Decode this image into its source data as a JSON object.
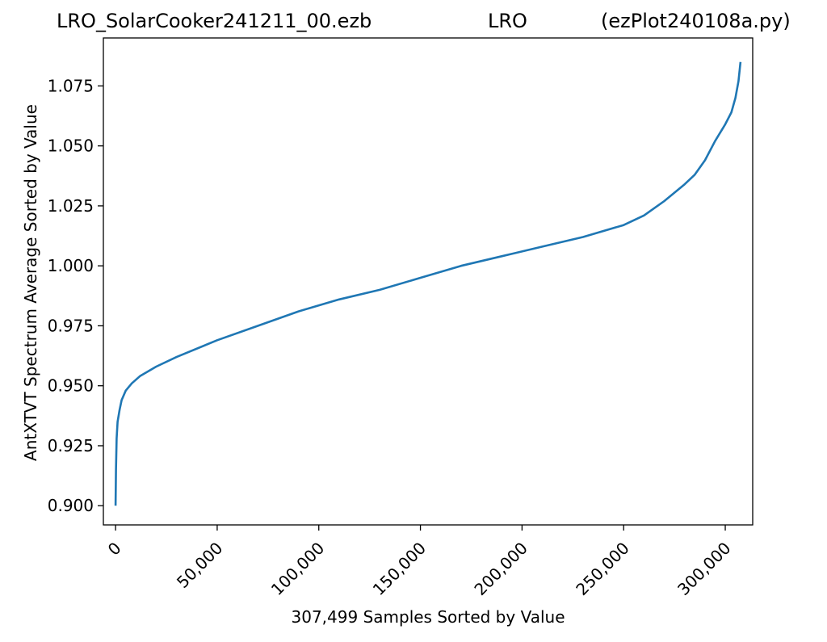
{
  "chart_data": {
    "type": "line",
    "title_left": "LRO_SolarCooker241211_00.ezb",
    "title_center": "LRO",
    "title_right": "(ezPlot240108a.py)",
    "xlabel": "307,499 Samples Sorted by Value",
    "ylabel": "AntXTVT Spectrum Average Sorted by Value",
    "xlim": [
      -6000,
      313500
    ],
    "ylim": [
      0.892,
      1.095
    ],
    "xticks": [
      0,
      50000,
      100000,
      150000,
      200000,
      250000,
      300000
    ],
    "xtick_labels": [
      "0",
      "50,000",
      "100,000",
      "150,000",
      "200,000",
      "250,000",
      "300,000"
    ],
    "yticks": [
      0.9,
      0.925,
      0.95,
      0.975,
      1.0,
      1.025,
      1.05,
      1.075
    ],
    "ytick_labels": [
      "0.900",
      "0.925",
      "0.950",
      "0.975",
      "1.000",
      "1.025",
      "1.050",
      "1.075"
    ],
    "grid": false,
    "series": [
      {
        "color": "#1f77b4",
        "x": [
          0,
          200,
          500,
          1000,
          2000,
          3000,
          5000,
          8000,
          12000,
          20000,
          30000,
          50000,
          70000,
          90000,
          110000,
          130000,
          150000,
          170000,
          190000,
          210000,
          230000,
          250000,
          260000,
          270000,
          280000,
          285000,
          290000,
          295000,
          300000,
          303000,
          305000,
          306500,
          307499
        ],
        "y": [
          0.9,
          0.915,
          0.928,
          0.935,
          0.94,
          0.944,
          0.948,
          0.951,
          0.954,
          0.958,
          0.962,
          0.969,
          0.975,
          0.981,
          0.986,
          0.99,
          0.995,
          1.0,
          1.004,
          1.008,
          1.012,
          1.017,
          1.021,
          1.027,
          1.034,
          1.038,
          1.044,
          1.052,
          1.059,
          1.064,
          1.07,
          1.077,
          1.085
        ]
      }
    ]
  }
}
